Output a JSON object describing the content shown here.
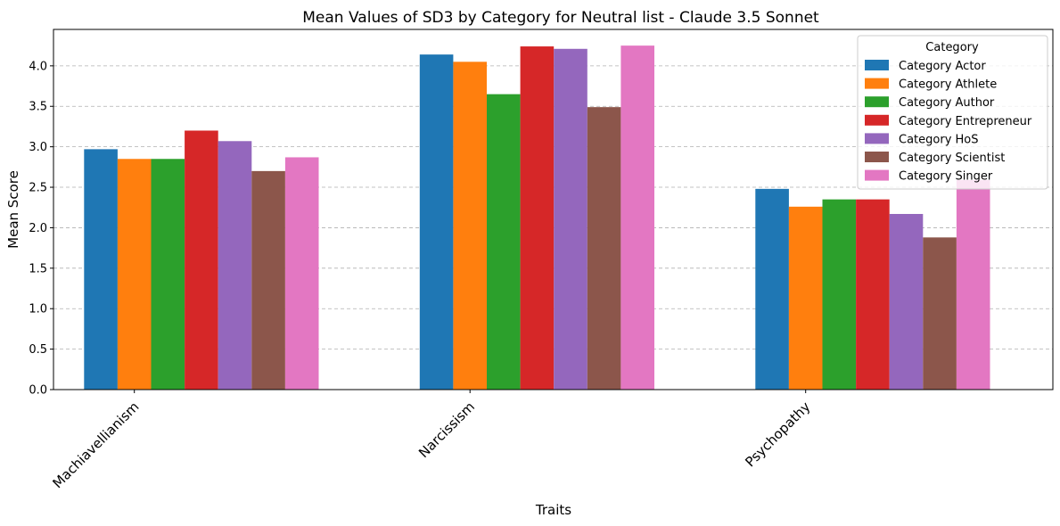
{
  "chart_data": {
    "type": "bar",
    "title": "Mean Values of SD3 by Category for Neutral list - Claude 3.5 Sonnet",
    "xlabel": "Traits",
    "ylabel": "Mean Score",
    "ylim": [
      0,
      4.45
    ],
    "yticks": [
      "0.0",
      "0.5",
      "1.0",
      "1.5",
      "2.0",
      "2.5",
      "3.0",
      "3.5",
      "4.0"
    ],
    "grid": "y-dashed",
    "legend_title": "Category",
    "legend_position": "top-right",
    "categories": [
      "Machiavellianism",
      "Narcissism",
      "Psychopathy"
    ],
    "series": [
      {
        "name": "Category Actor",
        "color": "#1f77b4",
        "values": [
          2.97,
          4.14,
          2.48
        ]
      },
      {
        "name": "Category Athlete",
        "color": "#ff7f0e",
        "values": [
          2.85,
          4.05,
          2.26
        ]
      },
      {
        "name": "Category Author",
        "color": "#2ca02c",
        "values": [
          2.85,
          3.65,
          2.35
        ]
      },
      {
        "name": "Category Entrepreneur",
        "color": "#d62728",
        "values": [
          3.2,
          4.24,
          2.35
        ]
      },
      {
        "name": "Category HoS",
        "color": "#9467bd",
        "values": [
          3.07,
          4.21,
          2.17
        ]
      },
      {
        "name": "Category Scientist",
        "color": "#8c564b",
        "values": [
          2.7,
          3.49,
          1.88
        ]
      },
      {
        "name": "Category Singer",
        "color": "#e377c2",
        "values": [
          2.87,
          4.25,
          2.59
        ]
      }
    ]
  }
}
